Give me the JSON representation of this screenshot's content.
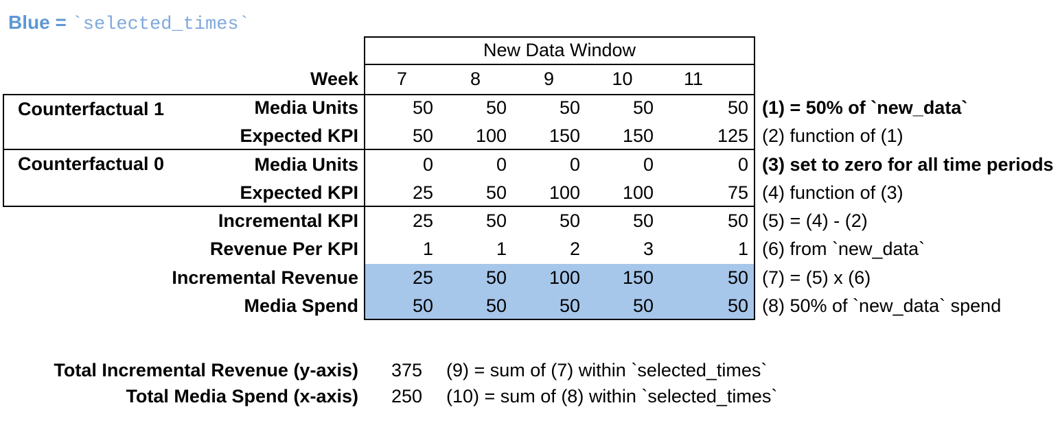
{
  "legend": {
    "prefix": "Blue = ",
    "code": "`selected_times`"
  },
  "colors": {
    "highlight": "#A6C6EA",
    "legend_text": "#5E97D3",
    "legend_code": "#7FA9DC",
    "border": "#000000"
  },
  "table": {
    "window_header": "New Data Window",
    "week_label": "Week",
    "weeks": [
      "7",
      "8",
      "9",
      "10",
      "11"
    ],
    "groups": [
      {
        "label": "Counterfactual 1"
      },
      {
        "label": "Counterfactual 0"
      }
    ],
    "rows": [
      {
        "label": "Media Units",
        "values": [
          "50",
          "50",
          "50",
          "50",
          "50"
        ],
        "annotation": "(1) = 50% of `new_data`",
        "annotation_bold": true,
        "highlight": false
      },
      {
        "label": "Expected KPI",
        "values": [
          "50",
          "100",
          "150",
          "150",
          "125"
        ],
        "annotation": "(2) function of (1)",
        "annotation_bold": false,
        "highlight": false
      },
      {
        "label": "Media Units",
        "values": [
          "0",
          "0",
          "0",
          "0",
          "0"
        ],
        "annotation": "(3) set to zero for all time periods",
        "annotation_bold": true,
        "highlight": false
      },
      {
        "label": "Expected KPI",
        "values": [
          "25",
          "50",
          "100",
          "100",
          "75"
        ],
        "annotation": "(4) function of (3)",
        "annotation_bold": false,
        "highlight": false
      },
      {
        "label": "Incremental KPI",
        "values": [
          "25",
          "50",
          "50",
          "50",
          "50"
        ],
        "annotation": "(5) = (4) - (2)",
        "annotation_bold": false,
        "highlight": false
      },
      {
        "label": "Revenue Per KPI",
        "values": [
          "1",
          "1",
          "2",
          "3",
          "1"
        ],
        "annotation": "(6) from `new_data`",
        "annotation_bold": false,
        "highlight": false
      },
      {
        "label": "Incremental Revenue",
        "values": [
          "25",
          "50",
          "100",
          "150",
          "50"
        ],
        "annotation": "(7) = (5) x (6)",
        "annotation_bold": false,
        "highlight": true
      },
      {
        "label": "Media Spend",
        "values": [
          "50",
          "50",
          "50",
          "50",
          "50"
        ],
        "annotation": "(8) 50% of `new_data` spend",
        "annotation_bold": false,
        "highlight": true
      }
    ]
  },
  "summary": [
    {
      "label": "Total Incremental Revenue (y-axis)",
      "value": "375",
      "annotation": "(9) = sum of (7) within `selected_times`"
    },
    {
      "label": "Total Media Spend (x-axis)",
      "value": "250",
      "annotation": "(10) = sum of (8) within `selected_times`"
    }
  ]
}
